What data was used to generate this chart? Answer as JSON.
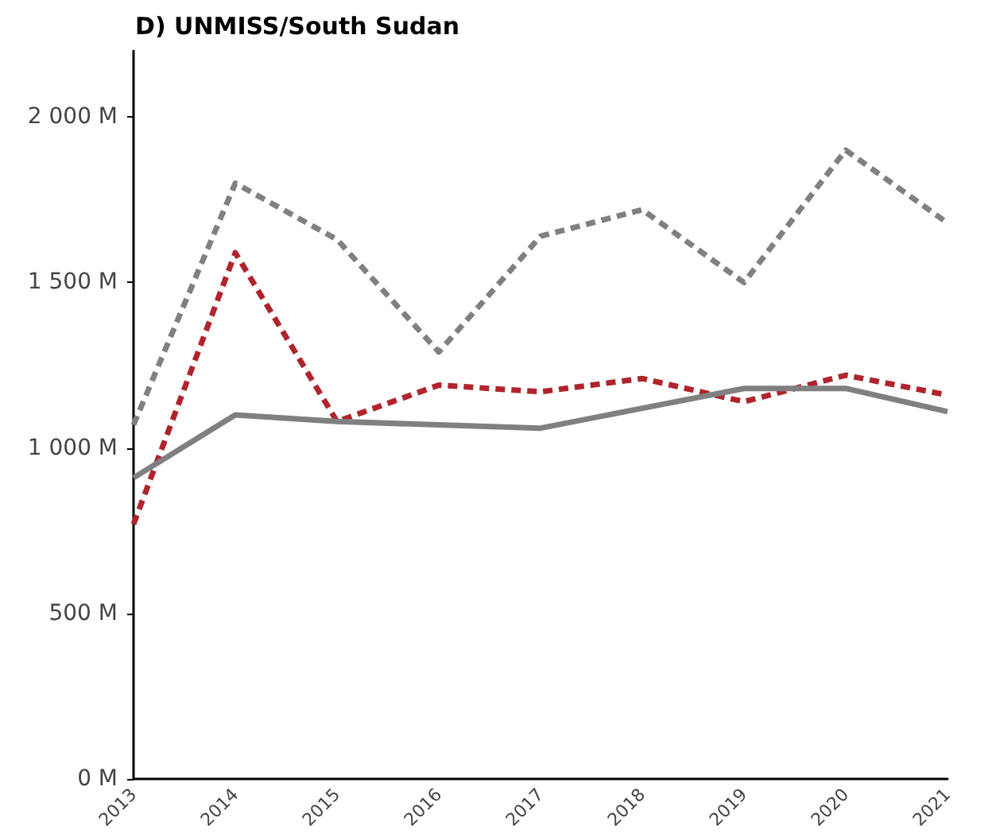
{
  "chart_data": {
    "type": "line",
    "title": "D) UNMISS/South Sudan",
    "categories": [
      "2013",
      "2014",
      "2015",
      "2016",
      "2017",
      "2018",
      "2019",
      "2020",
      "2021"
    ],
    "series": [
      {
        "color": "#808080",
        "line_style": "dashed",
        "values": [
          1070,
          1800,
          1630,
          1290,
          1640,
          1720,
          1500,
          1900,
          1680
        ]
      },
      {
        "color": "#b0242b",
        "line_style": "dashed",
        "values": [
          770,
          1590,
          1080,
          1190,
          1170,
          1210,
          1140,
          1220,
          1160
        ]
      },
      {
        "color": "#808080",
        "line_style": "solid",
        "values": [
          910,
          1100,
          1080,
          1070,
          1060,
          1120,
          1180,
          1180,
          1110
        ]
      }
    ],
    "ylim": [
      0,
      2200
    ],
    "yticks": [
      {
        "value": 0,
        "label": "0 M"
      },
      {
        "value": 500,
        "label": "500 M"
      },
      {
        "value": 1000,
        "label": "1 000 M"
      },
      {
        "value": 1500,
        "label": "1 500 M"
      },
      {
        "value": 2000,
        "label": "2 000 M"
      }
    ],
    "marker": "none"
  }
}
